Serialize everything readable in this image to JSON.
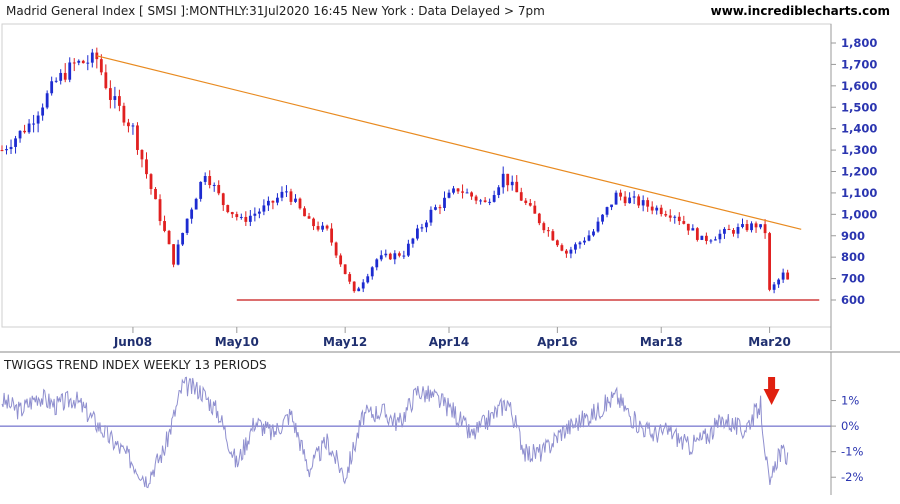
{
  "header": {
    "title": "Madrid General Index [ SMSI ]:MONTHLY:31Jul2020 16:45 New York : Data Delayed > 7pm",
    "website": "www.incrediblecharts.com"
  },
  "chart_data": [
    {
      "type": "candlestick",
      "title": "Madrid General Index [ SMSI ]:MONTHLY:31Jul2020 16:45 New York : Data Delayed > 7pm",
      "frequency": "monthly",
      "y_ticks": [
        "1,800",
        "1,700",
        "1,600",
        "1,500",
        "1,400",
        "1,300",
        "1,200",
        "1,100",
        "1,000",
        "900",
        "800",
        "700",
        "600"
      ],
      "x_ticks": [
        "Jun08",
        "May10",
        "May12",
        "Apr14",
        "Apr16",
        "Mar18",
        "Mar20"
      ],
      "ylim": [
        600,
        1800
      ],
      "colors": {
        "up": "#1d2bd0",
        "down": "#e02020",
        "trendline": "#e88a20",
        "support": "#c81818"
      },
      "closes": [
        {
          "date": "2006-01",
          "value": 1300
        },
        {
          "date": "2006-07",
          "value": 1420
        },
        {
          "date": "2007-01",
          "value": 1620
        },
        {
          "date": "2007-05",
          "value": 1700
        },
        {
          "date": "2007-10",
          "value": 1725
        },
        {
          "date": "2008-01",
          "value": 1550
        },
        {
          "date": "2008-06",
          "value": 1400
        },
        {
          "date": "2008-10",
          "value": 1120
        },
        {
          "date": "2009-03",
          "value": 780
        },
        {
          "date": "2009-06",
          "value": 980
        },
        {
          "date": "2009-10",
          "value": 1200
        },
        {
          "date": "2010-02",
          "value": 1050
        },
        {
          "date": "2010-06",
          "value": 970
        },
        {
          "date": "2010-12",
          "value": 1040
        },
        {
          "date": "2011-04",
          "value": 1110
        },
        {
          "date": "2011-09",
          "value": 960
        },
        {
          "date": "2012-01",
          "value": 920
        },
        {
          "date": "2012-07",
          "value": 630
        },
        {
          "date": "2012-12",
          "value": 790
        },
        {
          "date": "2013-06",
          "value": 820
        },
        {
          "date": "2013-12",
          "value": 1010
        },
        {
          "date": "2014-06",
          "value": 1120
        },
        {
          "date": "2014-12",
          "value": 1050
        },
        {
          "date": "2015-04",
          "value": 1180
        },
        {
          "date": "2015-10",
          "value": 1020
        },
        {
          "date": "2016-06",
          "value": 820
        },
        {
          "date": "2016-12",
          "value": 920
        },
        {
          "date": "2017-05",
          "value": 1090
        },
        {
          "date": "2017-12",
          "value": 1040
        },
        {
          "date": "2018-06",
          "value": 1000
        },
        {
          "date": "2018-12",
          "value": 880
        },
        {
          "date": "2019-06",
          "value": 920
        },
        {
          "date": "2019-12",
          "value": 950
        },
        {
          "date": "2020-02",
          "value": 920
        },
        {
          "date": "2020-03",
          "value": 640
        },
        {
          "date": "2020-06",
          "value": 720
        },
        {
          "date": "2020-07",
          "value": 690
        }
      ],
      "trendline": {
        "from": {
          "date": "2007-10",
          "value": 1740
        },
        "to": {
          "date": "2020-10",
          "value": 930
        }
      },
      "support_line": {
        "value": 600,
        "from_date": "2010-05",
        "to_date": "2021-02"
      }
    },
    {
      "type": "line",
      "title": "TWIGGS TREND INDEX WEEKLY 13 PERIODS",
      "y_ticks": [
        "1%",
        "0%",
        "-1%",
        "-2%"
      ],
      "ylim": [
        -2.5,
        2.0
      ],
      "colors": {
        "line": "#8f8fcf",
        "zero_line": "#5050c0",
        "arrow": "#e02010"
      },
      "arrow_date": "2020-03",
      "points": [
        {
          "date": "2006-01",
          "value": 1.0
        },
        {
          "date": "2006-05",
          "value": 0.6
        },
        {
          "date": "2006-09",
          "value": 1.2
        },
        {
          "date": "2007-01",
          "value": 0.8
        },
        {
          "date": "2007-05",
          "value": 1.1
        },
        {
          "date": "2007-09",
          "value": 0.3
        },
        {
          "date": "2008-01",
          "value": -0.5
        },
        {
          "date": "2008-05",
          "value": -1.2
        },
        {
          "date": "2008-09",
          "value": -2.1
        },
        {
          "date": "2009-01",
          "value": -0.9
        },
        {
          "date": "2009-05",
          "value": 1.6
        },
        {
          "date": "2009-09",
          "value": 1.4
        },
        {
          "date": "2010-01",
          "value": 0.5
        },
        {
          "date": "2010-05",
          "value": -1.5
        },
        {
          "date": "2010-09",
          "value": 0.2
        },
        {
          "date": "2011-01",
          "value": -0.3
        },
        {
          "date": "2011-05",
          "value": 0.5
        },
        {
          "date": "2011-09",
          "value": -1.7
        },
        {
          "date": "2012-01",
          "value": -0.6
        },
        {
          "date": "2012-05",
          "value": -2.0
        },
        {
          "date": "2012-09",
          "value": 0.4
        },
        {
          "date": "2013-01",
          "value": 0.6
        },
        {
          "date": "2013-05",
          "value": 0.1
        },
        {
          "date": "2013-09",
          "value": 1.4
        },
        {
          "date": "2014-01",
          "value": 1.1
        },
        {
          "date": "2014-05",
          "value": 0.6
        },
        {
          "date": "2014-09",
          "value": -0.4
        },
        {
          "date": "2015-01",
          "value": 0.3
        },
        {
          "date": "2015-05",
          "value": 1.0
        },
        {
          "date": "2015-09",
          "value": -1.1
        },
        {
          "date": "2016-01",
          "value": -1.0
        },
        {
          "date": "2016-05",
          "value": -0.2
        },
        {
          "date": "2016-09",
          "value": 0.2
        },
        {
          "date": "2017-01",
          "value": 0.6
        },
        {
          "date": "2017-05",
          "value": 1.2
        },
        {
          "date": "2017-09",
          "value": 0.2
        },
        {
          "date": "2018-01",
          "value": -0.3
        },
        {
          "date": "2018-05",
          "value": -0.2
        },
        {
          "date": "2018-09",
          "value": -0.8
        },
        {
          "date": "2019-01",
          "value": -0.4
        },
        {
          "date": "2019-05",
          "value": 0.3
        },
        {
          "date": "2019-09",
          "value": -0.2
        },
        {
          "date": "2020-01",
          "value": 0.8
        },
        {
          "date": "2020-03",
          "value": -2.5
        },
        {
          "date": "2020-05",
          "value": -1.0
        },
        {
          "date": "2020-07",
          "value": -1.2
        }
      ]
    }
  ]
}
